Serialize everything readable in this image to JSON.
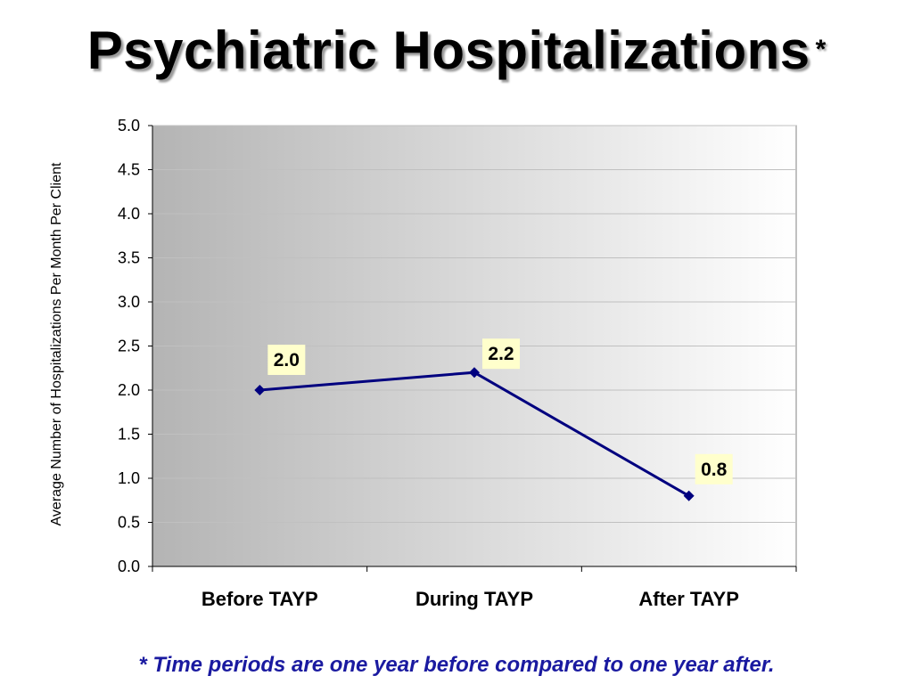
{
  "title": "Psychiatric Hospitalizations",
  "title_marker": "*",
  "footnote": "* Time periods are one year before compared to one year after.",
  "colors": {
    "line": "#00007f",
    "marker": "#00007f",
    "label_fill": "#ffffcc",
    "grid": "#c0c0c0",
    "plot_gradient_start": "#b4b4b4",
    "plot_gradient_end": "#ffffff"
  },
  "chart_data": {
    "type": "line",
    "categories": [
      "Before TAYP",
      "During TAYP",
      "After TAYP"
    ],
    "series": [
      {
        "values": [
          2.0,
          2.2,
          0.8
        ]
      }
    ],
    "data_labels": [
      "2.0",
      "2.2",
      "0.8"
    ],
    "ylabel": "Average Number of Hospitalizations Per Month Per Client",
    "xlabel": "",
    "ylim": [
      0,
      5
    ],
    "yticks": [
      "0.0",
      "0.5",
      "1.0",
      "1.5",
      "2.0",
      "2.5",
      "3.0",
      "3.5",
      "4.0",
      "4.5",
      "5.0"
    ],
    "grid": true,
    "legend": "none"
  }
}
